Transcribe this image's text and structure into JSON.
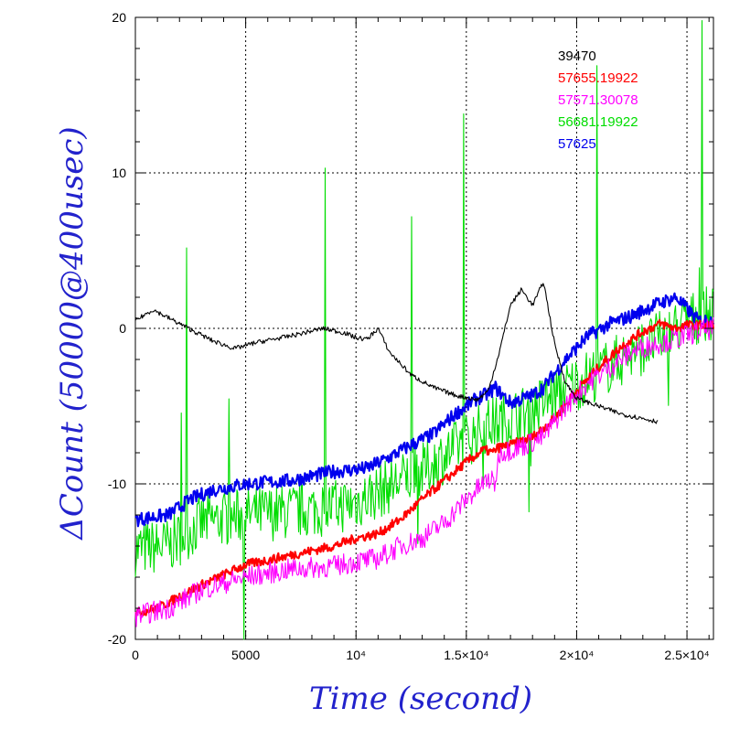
{
  "chart_data": {
    "type": "line",
    "title": "",
    "xlabel": "Time (second)",
    "ylabel": "ΔCount (50000@400usec)",
    "xlim": [
      0,
      26200
    ],
    "ylim": [
      -20,
      20
    ],
    "x_ticks": [
      {
        "value": 0,
        "label": "0"
      },
      {
        "value": 5000,
        "label": "5000"
      },
      {
        "value": 10000,
        "label": "10⁴"
      },
      {
        "value": 15000,
        "label": "1.5×10⁴"
      },
      {
        "value": 20000,
        "label": "2×10⁴"
      },
      {
        "value": 25000,
        "label": "2.5×10⁴"
      }
    ],
    "y_ticks": [
      {
        "value": -20,
        "label": "-20"
      },
      {
        "value": -10,
        "label": "-10"
      },
      {
        "value": 0,
        "label": "0"
      },
      {
        "value": 10,
        "label": "10"
      },
      {
        "value": 20,
        "label": "20"
      }
    ],
    "grid": true,
    "legend_position": "top-right",
    "series": [
      {
        "name": "39470",
        "color": "#000000",
        "noise": 0.15,
        "x": [
          0,
          800,
          2000,
          3500,
          4500,
          5500,
          7000,
          8500,
          9500,
          10000,
          10500,
          11000,
          11500,
          12500,
          13500,
          14500,
          15500,
          16000,
          16500,
          17000,
          17500,
          18000,
          18500,
          19000,
          19500,
          20000,
          21000,
          22000,
          23700
        ],
        "y": [
          0.5,
          1.2,
          0.3,
          -0.8,
          -1.3,
          -0.9,
          -0.5,
          0,
          -0.3,
          -0.6,
          -0.7,
          0,
          -1.5,
          -3,
          -3.8,
          -4.3,
          -4.6,
          -4.0,
          -1.5,
          1.5,
          2.5,
          1.5,
          3.0,
          -1.0,
          -3.5,
          -4.5,
          -5.0,
          -5.5,
          -6.0
        ]
      },
      {
        "name": "57655.19922",
        "color": "#ff0000",
        "noise": 0.3,
        "x": [
          0,
          1000,
          3000,
          5000,
          7000,
          9000,
          10000,
          11000,
          12000,
          13000,
          14000,
          15000,
          15800,
          16200,
          16400,
          17000,
          18000,
          19000,
          20000,
          21000,
          22000,
          23000,
          23800,
          24500,
          25000,
          26200
        ],
        "y": [
          -18.3,
          -18.0,
          -16.5,
          -15.2,
          -14.6,
          -14.0,
          -13.5,
          -13.2,
          -12.3,
          -11.0,
          -9.8,
          -8.6,
          -7.8,
          -8.0,
          -7.7,
          -7.5,
          -7.0,
          -5.8,
          -4.0,
          -2.5,
          -1.2,
          -0.2,
          0.3,
          0,
          0.2,
          0.2
        ]
      },
      {
        "name": "57571.30078",
        "color": "#ff00ff",
        "noise": 0.7,
        "x": [
          0,
          1500,
          3000,
          5000,
          7000,
          9000,
          10000,
          11000,
          12000,
          13000,
          14000,
          15000,
          16000,
          16300,
          16500,
          17500,
          18500,
          19500,
          20500,
          21500,
          22500,
          23500,
          24500,
          25500,
          26200
        ],
        "y": [
          -18.5,
          -18.0,
          -16.8,
          -16.0,
          -15.5,
          -15.3,
          -15.0,
          -14.8,
          -14.0,
          -13.5,
          -12.5,
          -11.0,
          -9.7,
          -10.0,
          -8.0,
          -7.6,
          -7.0,
          -5.0,
          -3.5,
          -2.5,
          -1.5,
          -1.0,
          -0.7,
          -0.2,
          0
        ]
      },
      {
        "name": "56681.19922",
        "color": "#00dd00",
        "noise": 1.8,
        "x": [
          0,
          1500,
          3000,
          5000,
          7000,
          9000,
          10000,
          11000,
          12000,
          13000,
          14000,
          15000,
          16000,
          17000,
          18000,
          19000,
          20000,
          21000,
          22000,
          23000,
          24000,
          25000,
          26200
        ],
        "y": [
          -14.2,
          -14.0,
          -12.5,
          -12.0,
          -11.8,
          -11.5,
          -11.2,
          -10.5,
          -9.8,
          -9.2,
          -8.2,
          -7.2,
          -6.2,
          -5.8,
          -5.2,
          -4.3,
          -3.5,
          -2.8,
          -2.0,
          -1.2,
          -0.5,
          0.5,
          1.0
        ]
      },
      {
        "name": "57625",
        "color": "#0000ee",
        "noise": 0.45,
        "x": [
          0,
          1500,
          2500,
          3500,
          5000,
          7000,
          9000,
          10500,
          11500,
          12500,
          13500,
          14500,
          15500,
          16000,
          16300,
          17000,
          18000,
          18500,
          19500,
          20500,
          21500,
          22500,
          23500,
          24500,
          25500,
          26200
        ],
        "y": [
          -12.3,
          -12.0,
          -11.0,
          -10.4,
          -10.0,
          -9.8,
          -9.2,
          -9.0,
          -8.3,
          -7.5,
          -6.8,
          -5.5,
          -4.5,
          -4.2,
          -3.8,
          -4.8,
          -4.3,
          -3.8,
          -2.0,
          -0.5,
          0.3,
          0.8,
          1.5,
          2.0,
          0.5,
          0.5
        ]
      }
    ]
  }
}
